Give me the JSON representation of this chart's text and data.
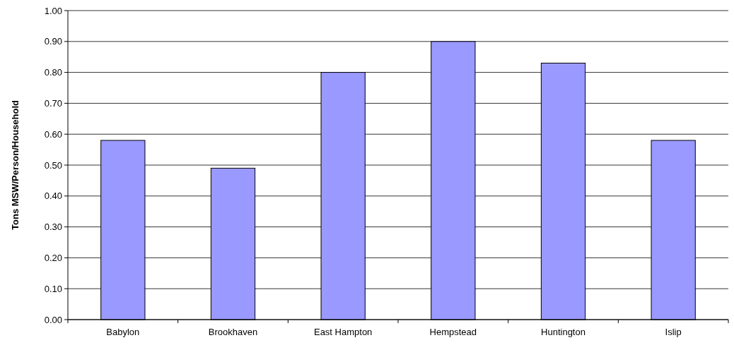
{
  "chart_data": {
    "type": "bar",
    "ylabel": "Tons MSW/Person/Household",
    "categories": [
      "Babylon",
      "Brookhaven",
      "East Hampton",
      "Hempstead",
      "Huntington",
      "Islip"
    ],
    "values": [
      0.58,
      0.49,
      0.8,
      0.9,
      0.83,
      0.58
    ],
    "color": "#9999ff",
    "ylim": [
      0,
      1
    ],
    "yticks": [
      {
        "value": 0,
        "label": "0.00"
      },
      {
        "value": 0.1,
        "label": "0.10"
      },
      {
        "value": 0.2,
        "label": "0.20"
      },
      {
        "value": 0.3,
        "label": "0.30"
      },
      {
        "value": 0.4,
        "label": "0.40"
      },
      {
        "value": 0.5,
        "label": "0.50"
      },
      {
        "value": 0.6,
        "label": "0.60"
      },
      {
        "value": 0.7,
        "label": "0.70"
      },
      {
        "value": 0.8,
        "label": "0.80"
      },
      {
        "value": 0.9,
        "label": "0.90"
      },
      {
        "value": 1,
        "label": "1.00"
      }
    ],
    "grid": "y"
  }
}
